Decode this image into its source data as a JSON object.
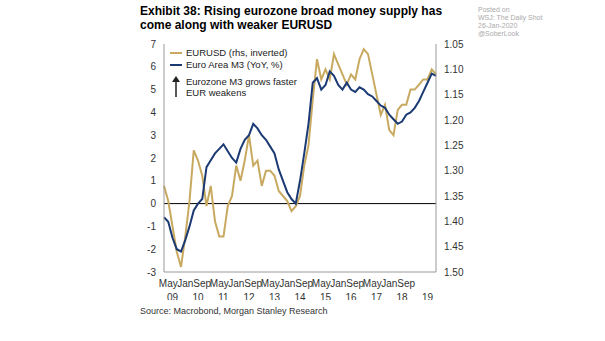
{
  "chart_data": {
    "type": "line",
    "title": "Exhibit 38:  Rising eurozone broad money supply has come along with weaker EURUSD",
    "source": "Source: Macrobond, Morgan Stanley Research",
    "watermark": [
      "Posted on",
      "WSJ: The Daily Shot",
      "26-Jan-2020",
      "@SoberLook"
    ],
    "annotations": [
      "Eurozone M3 grows faster",
      "EUR weakens"
    ],
    "categories": [
      null,
      "May",
      null,
      null,
      null,
      "Jan",
      null,
      null,
      null,
      "Sep",
      null,
      null,
      null,
      "May",
      null,
      null,
      null,
      "Jan",
      null,
      null,
      null,
      "Sep",
      null,
      null,
      null,
      "May",
      null,
      null,
      null,
      "Jan",
      null,
      null,
      null,
      "Sep",
      null,
      null,
      null,
      "May",
      null,
      null,
      null,
      "Jan",
      null,
      null,
      null,
      "Sep",
      null,
      null,
      null,
      "May",
      null,
      null,
      null,
      "Jan",
      null,
      null,
      null,
      "Sep",
      null,
      null,
      null,
      null,
      null,
      null,
      null
    ],
    "category_years": [
      null,
      null,
      "09",
      null,
      null,
      null,
      null,
      null,
      "10",
      null,
      null,
      null,
      null,
      null,
      "11",
      null,
      null,
      null,
      null,
      null,
      "12",
      null,
      null,
      null,
      null,
      null,
      "13",
      null,
      null,
      null,
      null,
      null,
      "14",
      null,
      null,
      null,
      null,
      null,
      "15",
      null,
      null,
      null,
      null,
      null,
      "16",
      null,
      null,
      null,
      null,
      null,
      "17",
      null,
      null,
      null,
      null,
      null,
      "18",
      null,
      null,
      null,
      null,
      null,
      "19",
      null,
      null
    ],
    "series": [
      {
        "name": "EURUSD (rhs, inverted)",
        "color": "#c8a960",
        "axis": "y2",
        "values": [
          1.33,
          1.36,
          1.41,
          1.46,
          1.49,
          1.43,
          1.36,
          1.26,
          1.28,
          1.31,
          1.37,
          1.33,
          1.4,
          1.43,
          1.43,
          1.37,
          1.35,
          1.29,
          1.32,
          1.28,
          1.23,
          1.29,
          1.28,
          1.33,
          1.3,
          1.3,
          1.31,
          1.34,
          1.35,
          1.36,
          1.38,
          1.37,
          1.35,
          1.29,
          1.25,
          1.16,
          1.08,
          1.12,
          1.1,
          1.12,
          1.07,
          1.09,
          1.11,
          1.13,
          1.11,
          1.12,
          1.08,
          1.06,
          1.07,
          1.11,
          1.15,
          1.19,
          1.17,
          1.22,
          1.23,
          1.18,
          1.17,
          1.17,
          1.14,
          1.14,
          1.13,
          1.12,
          1.12,
          1.1,
          1.11
        ]
      },
      {
        "name": "Euro Area M3 (YoY, %)",
        "color": "#1b3a73",
        "values": [
          -0.6,
          -0.8,
          -1.5,
          -2.0,
          -2.1,
          -1.6,
          -1.0,
          -0.3,
          0.0,
          0.2,
          1.6,
          1.9,
          2.2,
          2.4,
          2.6,
          2.3,
          2.0,
          1.8,
          2.4,
          2.8,
          3.0,
          3.5,
          3.3,
          3.0,
          2.8,
          2.5,
          2.2,
          1.5,
          1.0,
          0.5,
          0.2,
          0.0,
          1.0,
          2.2,
          3.5,
          5.3,
          5.5,
          5.0,
          5.2,
          5.8,
          5.6,
          5.2,
          5.0,
          5.3,
          5.0,
          4.9,
          5.1,
          5.0,
          4.8,
          4.7,
          4.5,
          4.3,
          4.2,
          3.9,
          3.7,
          3.5,
          3.6,
          3.9,
          4.0,
          4.2,
          4.5,
          4.9,
          5.3,
          5.7,
          5.6
        ]
      }
    ],
    "ylim": [
      -3,
      7
    ],
    "yticks": [
      -3,
      -2,
      -1,
      0,
      1,
      2,
      3,
      4,
      5,
      6,
      7
    ],
    "y2lim": [
      1.5,
      1.05
    ],
    "y2ticks": [
      1.05,
      {
        "value": 1.1,
        "label": "1.10"
      },
      1.15,
      {
        "value": 1.2,
        "label": "1.20"
      },
      1.25,
      {
        "value": 1.3,
        "label": "1.30"
      },
      1.35,
      {
        "value": 1.4,
        "label": "1.40"
      },
      1.45,
      {
        "value": 1.5,
        "label": "1.50"
      }
    ],
    "reference_lines": [
      0
    ],
    "grid": false,
    "legend": "upper left"
  }
}
